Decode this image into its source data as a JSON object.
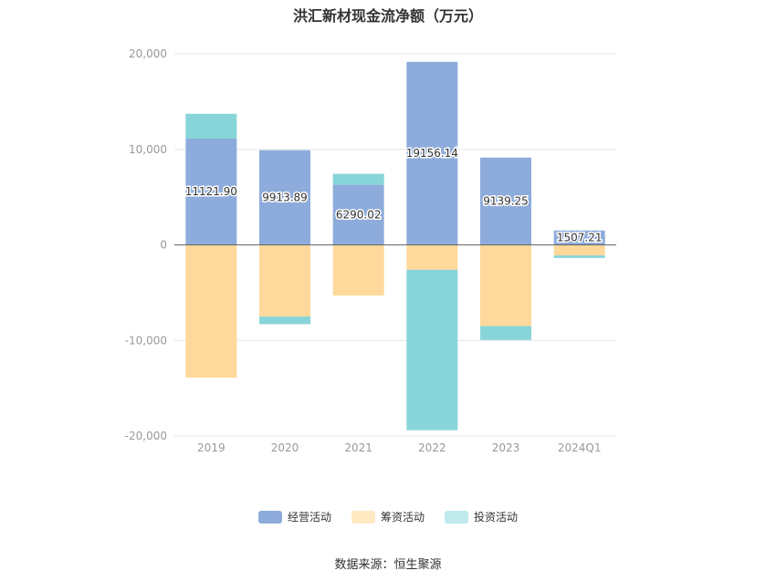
{
  "title": "洪汇新材现金流净额（万元）",
  "source": "数据来源：恒生聚源",
  "chart_data": {
    "type": "bar",
    "stacked": true,
    "categories": [
      "2019",
      "2020",
      "2021",
      "2022",
      "2023",
      "2024Q1"
    ],
    "ylim": [
      -20000,
      20000
    ],
    "yticks": [
      -20000,
      -10000,
      0,
      10000,
      20000
    ],
    "ytick_labels": [
      "-20,000",
      "-10,000",
      "0",
      "10,000",
      "20,000"
    ],
    "grid": true,
    "legend_position": "bottom",
    "series": [
      {
        "name": "经营活动",
        "color": "#8eacdb",
        "values": [
          11121.9,
          9913.89,
          6290.02,
          19156.14,
          9139.25,
          1507.21
        ]
      },
      {
        "name": "筹资活动",
        "color": "#ffd99b",
        "values": [
          -13900,
          -7500,
          -5300,
          -2600,
          -8500,
          -1100
        ]
      },
      {
        "name": "投资活动",
        "color": "#88d5d9",
        "values": [
          2600,
          -800,
          1150,
          -16800,
          -1450,
          -270
        ]
      }
    ],
    "data_labels": [
      "11121.90",
      "9913.89",
      "6290.02",
      "19156.14",
      "9139.25",
      "1507.21"
    ]
  }
}
